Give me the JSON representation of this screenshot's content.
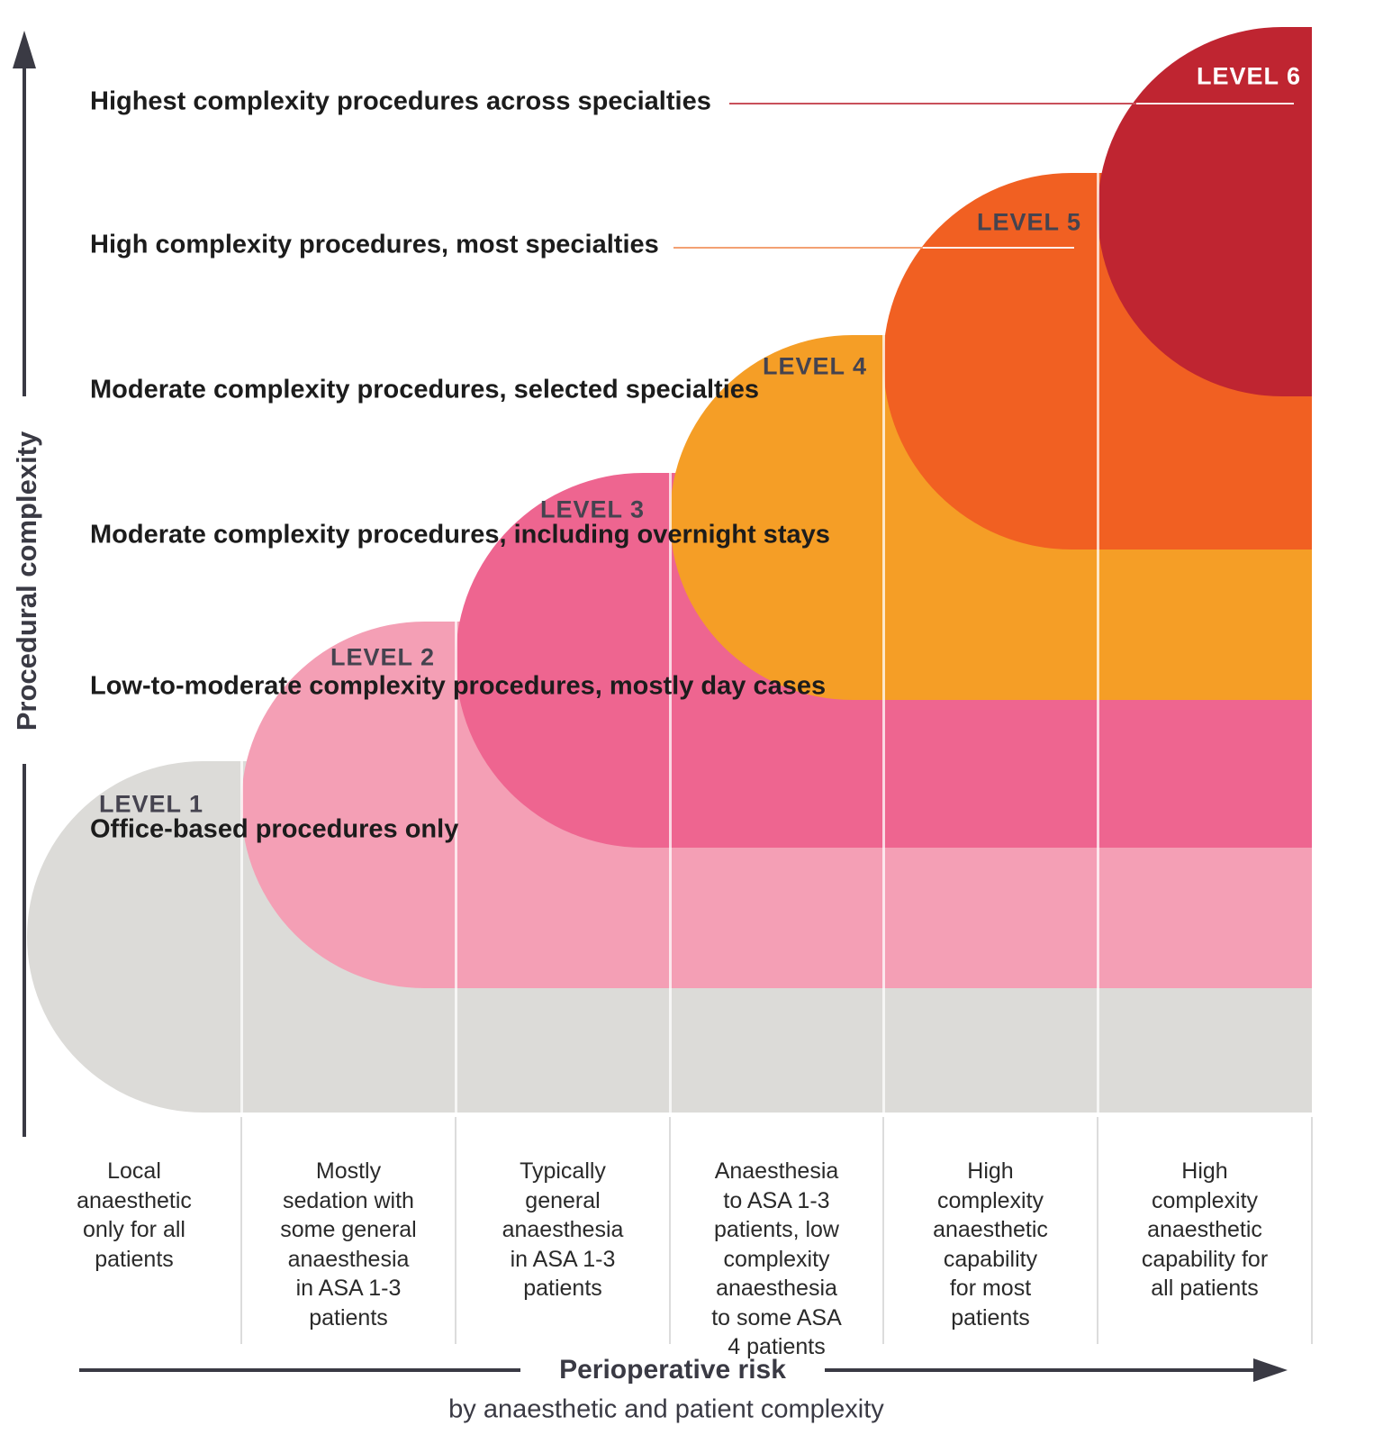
{
  "axes": {
    "y_label": "Procedural complexity",
    "x_label": "Perioperative risk",
    "x_sublabel": "by anaesthetic and patient complexity"
  },
  "levels": [
    {
      "name": "LEVEL 1",
      "description": "Office-based procedures only",
      "column_label": "Local\nanaesthetic\nonly for all\npatients",
      "color": "#dcdbd8",
      "label_color": "#45434f"
    },
    {
      "name": "LEVEL 2",
      "description": "Low-to-moderate complexity procedures, mostly day cases",
      "column_label": "Mostly\nsedation with\nsome general\nanaesthesia\nin ASA 1-3\npatients",
      "color": "#f49fb5",
      "label_color": "#45434f"
    },
    {
      "name": "LEVEL 3",
      "description": "Moderate complexity procedures, including overnight stays",
      "column_label": "Typically\ngeneral\nanaesthesia\nin ASA 1-3\npatients",
      "color": "#ee6590",
      "label_color": "#45434f"
    },
    {
      "name": "LEVEL 4",
      "description": "Moderate complexity procedures, selected specialties",
      "column_label": "Anaesthesia\nto ASA 1-3\npatients, low\ncomplexity\nanaesthesia\nto some ASA\n4 patients",
      "color": "#f59e26",
      "label_color": "#45434f"
    },
    {
      "name": "LEVEL 5",
      "description": "High complexity procedures, most specialties",
      "column_label": "High\ncomplexity\nanaesthetic\ncapability\nfor most\npatients",
      "color": "#f16022",
      "label_color": "#45434f",
      "leader_color": "#f3a173"
    },
    {
      "name": "LEVEL 6",
      "description": "Highest complexity procedures across specialties",
      "column_label": "High\ncomplexity\nanaesthetic\ncapability for\nall patients",
      "color": "#bf2531",
      "label_color": "#ffffff",
      "leader_color": "#c9505a"
    }
  ],
  "colors": {
    "axis": "#3a3a44",
    "description_text": "#1c1c1c",
    "column_label_text": "#2a2a2a",
    "divider_on_shapes": "rgba(255,255,255,0.75)",
    "divider_label_area": "#dcdcdc",
    "leader_white": "rgba(255,255,255,0.9)"
  }
}
